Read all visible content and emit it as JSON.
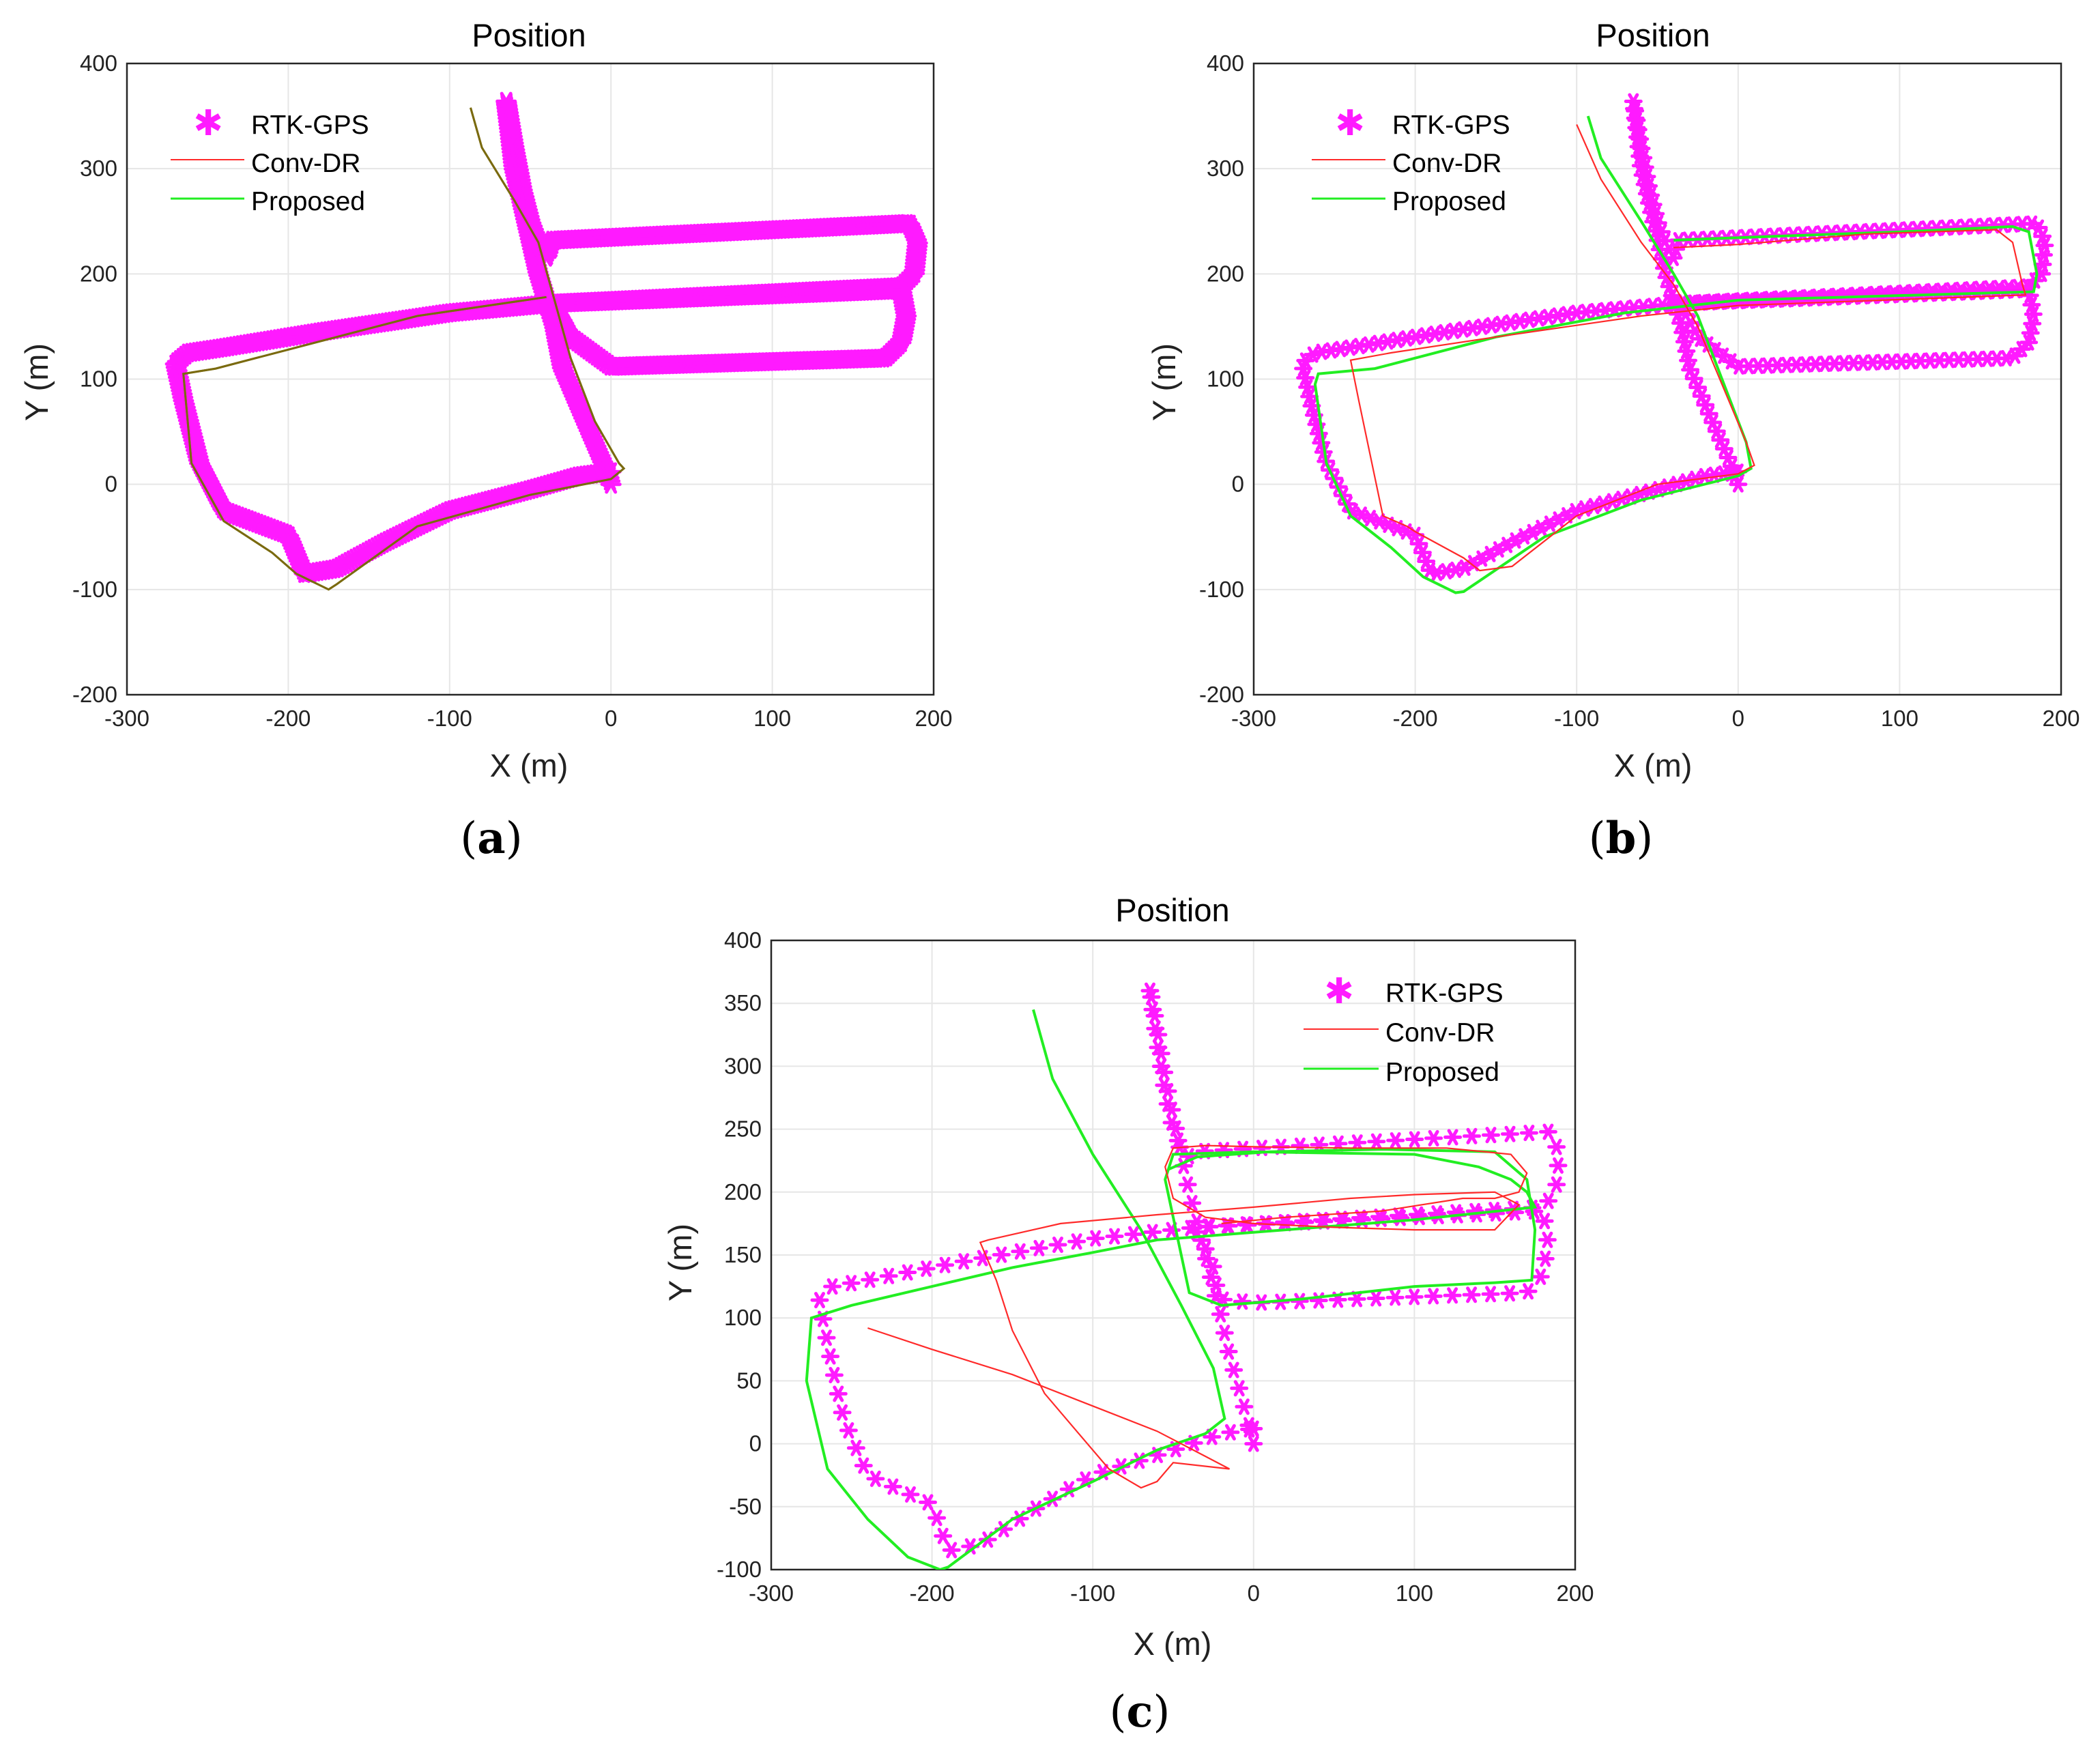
{
  "colors": {
    "rtk": "#ff1aff",
    "conv": "#ff2a2a",
    "proposed": "#22ee22",
    "overlap": "#7a6a10"
  },
  "chart_data": [
    {
      "panel": "(a)",
      "type": "line",
      "title": "Position",
      "xlabel": "X (m)",
      "ylabel": "Y (m)",
      "xlim": [
        -300,
        200
      ],
      "ylim": [
        -200,
        400
      ],
      "xticks": [
        -300,
        -200,
        -100,
        0,
        100,
        200
      ],
      "yticks": [
        -200,
        -100,
        0,
        100,
        200,
        300,
        400
      ],
      "grid": true,
      "legend_position": "top-left",
      "series": [
        {
          "name": "RTK-GPS",
          "marker": "asterisk",
          "style": "dense",
          "x": [
            0,
            -2,
            -30,
            -35,
            -40,
            -45,
            -60,
            -65,
            -60,
            -55,
            -50,
            -45,
            -40,
            -37,
            185,
            190,
            188,
            180,
            100,
            -37,
            -30,
            -25,
            0,
            170,
            180,
            183,
            180,
            150,
            -35,
            -100,
            -180,
            -240,
            -262,
            -270,
            -265,
            -255,
            -240,
            -200,
            -190,
            -170,
            -140,
            -100,
            -50,
            -20,
            0
          ],
          "y": [
            0,
            10,
            110,
            150,
            175,
            200,
            300,
            365,
            320,
            280,
            250,
            230,
            215,
            232,
            248,
            230,
            200,
            188,
            182,
            172,
            155,
            140,
            112,
            120,
            135,
            160,
            185,
            183,
            172,
            163,
            145,
            130,
            125,
            115,
            80,
            20,
            -25,
            -48,
            -85,
            -80,
            -55,
            -25,
            -5,
            8,
            12
          ]
        },
        {
          "name": "Conv-DR",
          "x": [
            -87,
            -80,
            -60,
            -45,
            -35,
            -25,
            -10,
            5,
            8,
            0,
            -50,
            -120,
            -170,
            -175,
            -195,
            -210,
            -240,
            -260,
            -265,
            -245,
            -200,
            -120,
            -40
          ],
          "y": [
            358,
            320,
            270,
            230,
            175,
            120,
            60,
            20,
            15,
            5,
            -10,
            -40,
            -95,
            -100,
            -85,
            -65,
            -35,
            20,
            105,
            110,
            128,
            160,
            178
          ]
        },
        {
          "name": "Proposed",
          "x": [
            -87,
            -80,
            -60,
            -45,
            -35,
            -25,
            -10,
            5,
            8,
            0,
            -50,
            -120,
            -170,
            -175,
            -195,
            -210,
            -240,
            -260,
            -265,
            -245,
            -200,
            -120,
            -40
          ],
          "y": [
            358,
            320,
            270,
            230,
            175,
            120,
            60,
            20,
            15,
            5,
            -10,
            -40,
            -95,
            -100,
            -85,
            -65,
            -35,
            20,
            105,
            110,
            128,
            160,
            178
          ]
        }
      ]
    },
    {
      "panel": "(b)",
      "type": "line",
      "title": "Position",
      "xlabel": "X (m)",
      "ylabel": "Y (m)",
      "xlim": [
        -300,
        200
      ],
      "ylim": [
        -200,
        400
      ],
      "xticks": [
        -300,
        -200,
        -100,
        0,
        100,
        200
      ],
      "yticks": [
        -200,
        -100,
        0,
        100,
        200,
        300,
        400
      ],
      "grid": true,
      "legend_position": "top-left",
      "series": [
        {
          "name": "RTK-GPS",
          "marker": "asterisk",
          "style": "semi-dense",
          "x": [
            0,
            -2,
            -30,
            -35,
            -40,
            -45,
            -60,
            -65,
            -60,
            -55,
            -50,
            -45,
            -40,
            -37,
            185,
            190,
            188,
            180,
            100,
            -37,
            -30,
            -25,
            0,
            170,
            180,
            183,
            180,
            150,
            -35,
            -100,
            -180,
            -240,
            -262,
            -270,
            -265,
            -255,
            -240,
            -200,
            -190,
            -170,
            -140,
            -100,
            -50,
            -20,
            0
          ],
          "y": [
            0,
            10,
            110,
            150,
            175,
            200,
            300,
            365,
            320,
            280,
            250,
            230,
            215,
            232,
            248,
            230,
            200,
            188,
            182,
            172,
            155,
            140,
            112,
            120,
            135,
            160,
            185,
            183,
            172,
            163,
            145,
            130,
            125,
            115,
            80,
            20,
            -25,
            -48,
            -85,
            -80,
            -55,
            -25,
            -5,
            8,
            12
          ]
        },
        {
          "name": "Conv-DR",
          "x": [
            -100,
            -85,
            -60,
            -40,
            -25,
            -10,
            5,
            10,
            0,
            -50,
            -100,
            -140,
            -160,
            -170,
            -200,
            -205,
            -220,
            -235,
            -240,
            -215,
            -150,
            -60,
            0,
            178,
            176,
            170,
            160,
            80,
            0,
            -40
          ],
          "y": [
            342,
            290,
            230,
            190,
            150,
            95,
            40,
            18,
            10,
            0,
            -30,
            -78,
            -82,
            -70,
            -45,
            -40,
            -30,
            80,
            118,
            125,
            140,
            160,
            170,
            180,
            190,
            230,
            242,
            238,
            228,
            225
          ]
        },
        {
          "name": "Proposed",
          "x": [
            -93,
            -85,
            -60,
            -40,
            -25,
            -10,
            5,
            8,
            0,
            -60,
            -120,
            -170,
            -175,
            -195,
            -215,
            -240,
            -255,
            -262,
            -260,
            -225,
            -150,
            -70,
            0,
            183,
            185,
            180,
            170,
            100,
            10,
            -40
          ],
          "y": [
            350,
            310,
            250,
            200,
            160,
            100,
            40,
            15,
            8,
            -15,
            -50,
            -102,
            -103,
            -88,
            -60,
            -30,
            20,
            95,
            105,
            110,
            140,
            163,
            175,
            183,
            200,
            240,
            245,
            240,
            235,
            232
          ]
        }
      ]
    },
    {
      "panel": "(c)",
      "type": "line",
      "title": "Position",
      "xlabel": "X (m)",
      "ylabel": "Y (m)",
      "xlim": [
        -300,
        200
      ],
      "ylim": [
        -100,
        400
      ],
      "xticks": [
        -300,
        -200,
        -100,
        0,
        100,
        200
      ],
      "yticks": [
        -100,
        -50,
        0,
        50,
        100,
        150,
        200,
        250,
        300,
        350,
        400
      ],
      "grid": true,
      "legend_position": "top-right",
      "series": [
        {
          "name": "RTK-GPS",
          "marker": "asterisk",
          "style": "sparse",
          "x": [
            0,
            -2,
            -8,
            -15,
            -20,
            -25,
            -30,
            -35,
            -40,
            -45,
            -50,
            -55,
            -60,
            -65,
            -60,
            -55,
            -50,
            -45,
            -40,
            -38,
            185,
            190,
            188,
            180,
            100,
            -37,
            -30,
            -25,
            -22,
            0,
            170,
            180,
            183,
            180,
            150,
            -35,
            -100,
            -180,
            -240,
            -262,
            -270,
            -265,
            -255,
            -240,
            -200,
            -190,
            -170,
            -140,
            -100,
            -50,
            -20,
            0
          ],
          "y": [
            0,
            10,
            40,
            70,
            100,
            125,
            150,
            175,
            200,
            230,
            260,
            290,
            330,
            365,
            320,
            280,
            250,
            235,
            228,
            232,
            248,
            230,
            200,
            188,
            182,
            172,
            155,
            140,
            115,
            112,
            120,
            135,
            160,
            185,
            183,
            172,
            163,
            145,
            130,
            125,
            115,
            80,
            20,
            -25,
            -48,
            -85,
            -80,
            -55,
            -25,
            -5,
            8,
            12
          ]
        },
        {
          "name": "Conv-DR",
          "x": [
            -240,
            -200,
            -150,
            -100,
            -60,
            -30,
            -15,
            -50,
            -60,
            -70,
            -90,
            -110,
            -130,
            -150,
            -160,
            -170,
            -165,
            -120,
            -60,
            0,
            60,
            100,
            150,
            165,
            150,
            100,
            50,
            0,
            -30,
            -50,
            -55,
            -50,
            -30,
            0,
            60,
            120,
            160,
            170,
            165,
            150,
            130,
            80,
            20,
            -20
          ],
          "y": [
            92,
            75,
            55,
            30,
            10,
            -10,
            -20,
            -15,
            -30,
            -35,
            -20,
            10,
            40,
            90,
            130,
            160,
            162,
            175,
            182,
            188,
            195,
            198,
            200,
            190,
            170,
            170,
            172,
            175,
            180,
            195,
            220,
            235,
            237,
            236,
            235,
            235,
            230,
            215,
            200,
            195,
            195,
            185,
            180,
            175
          ]
        },
        {
          "name": "Proposed",
          "x": [
            -137,
            -125,
            -100,
            -70,
            -45,
            -25,
            -18,
            -30,
            -60,
            -100,
            -150,
            -190,
            -195,
            -215,
            -240,
            -265,
            -278,
            -275,
            -250,
            -200,
            -150,
            -100,
            -60,
            0,
            100,
            175,
            170,
            160,
            140,
            100,
            0,
            -50,
            -55,
            -40,
            -20,
            30,
            100,
            150,
            173,
            175,
            170,
            150,
            80,
            10,
            -35,
            -53
          ],
          "y": [
            345,
            290,
            230,
            170,
            110,
            60,
            20,
            8,
            -5,
            -30,
            -60,
            -98,
            -100,
            -90,
            -60,
            -20,
            50,
            100,
            110,
            125,
            140,
            152,
            162,
            168,
            178,
            188,
            200,
            210,
            220,
            230,
            232,
            230,
            210,
            120,
            110,
            115,
            125,
            128,
            130,
            170,
            210,
            232,
            234,
            232,
            228,
            218
          ]
        }
      ]
    }
  ]
}
